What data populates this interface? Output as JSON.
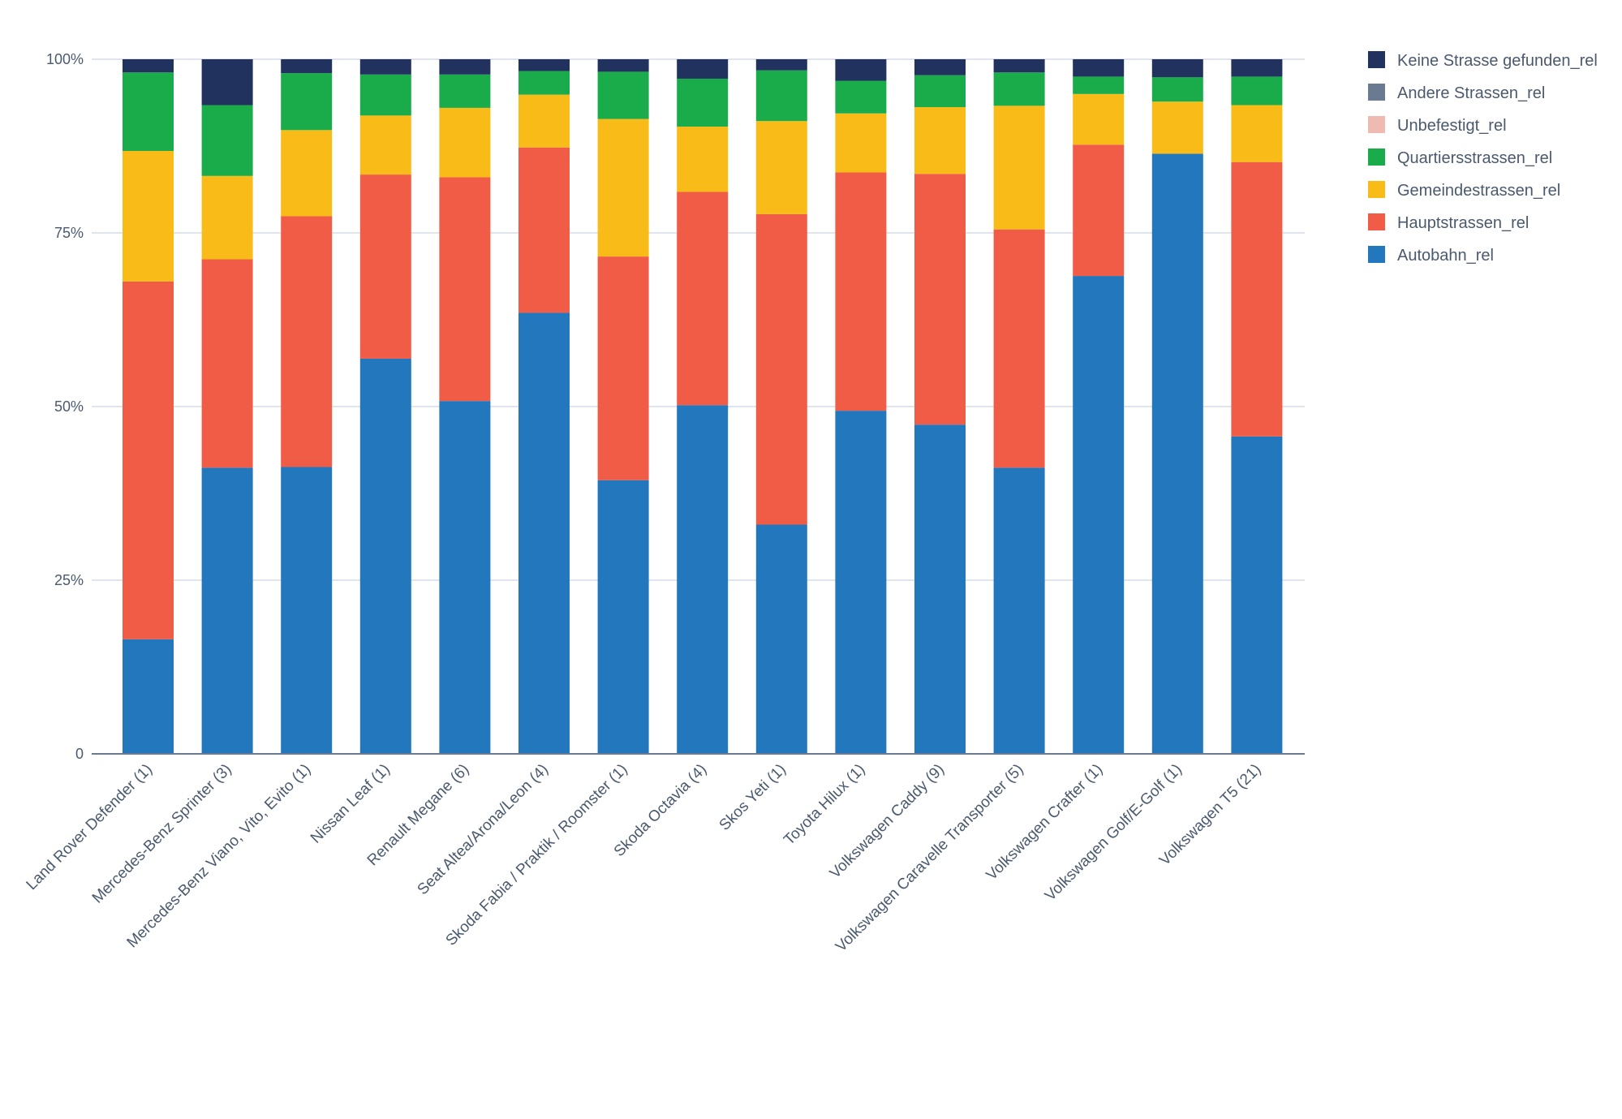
{
  "chart_data": {
    "type": "bar",
    "stacked": true,
    "normalized": true,
    "title": "",
    "xlabel": "",
    "ylabel": "",
    "ylim": [
      0,
      100
    ],
    "yticks": [
      "0",
      "25%",
      "50%",
      "75%",
      "100%"
    ],
    "grid": true,
    "legend_position": "right",
    "categories": [
      "Land Rover Defender (1)",
      "Mercedes-Benz Sprinter (3)",
      "Mercedes-Benz Viano, Vito, Evito (1)",
      "Nissan Leaf (1)",
      "Renault Megane (6)",
      "Seat Altea/Arona/Leon (4)",
      "Skoda Fabia / Praktik / Roomster (1)",
      "Skoda Octavia (4)",
      "Skos Yeti (1)",
      "Toyota Hilux (1)",
      "Volkswagen Caddy (9)",
      "Volkswagen Caravelle Transporter (5)",
      "Volkswagen Crafter (1)",
      "Volkswagen Golf/E-Golf (1)",
      "Volkswagen T5 (21)"
    ],
    "series": [
      {
        "name": "Autobahn_rel",
        "color": "#2377bc",
        "values": [
          16.5,
          41.2,
          41.3,
          56.9,
          50.8,
          63.5,
          39.4,
          50.2,
          33.0,
          49.4,
          47.4,
          41.2,
          68.8,
          86.4,
          45.7
        ]
      },
      {
        "name": "Hauptstrassen_rel",
        "color": "#f05c45",
        "values": [
          51.5,
          30.0,
          36.1,
          26.5,
          32.2,
          23.8,
          32.2,
          30.7,
          44.7,
          34.3,
          36.1,
          34.3,
          18.9,
          0,
          39.5
        ]
      },
      {
        "name": "Gemeindestrassen_rel",
        "color": "#f9bb17",
        "values": [
          18.8,
          12.0,
          12.4,
          8.5,
          10.0,
          7.6,
          19.8,
          9.4,
          13.4,
          8.5,
          9.6,
          17.8,
          7.3,
          7.5,
          8.2
        ]
      },
      {
        "name": "Quartiersstrassen_rel",
        "color": "#1aab4b",
        "values": [
          11.3,
          10.2,
          8.2,
          5.9,
          4.8,
          3.4,
          6.8,
          6.9,
          7.3,
          4.7,
          4.6,
          4.8,
          2.5,
          3.5,
          4.1
        ]
      },
      {
        "name": "Unbefestigt_rel",
        "color": "#eebab2",
        "values": [
          0,
          0,
          0,
          0,
          0,
          0,
          0,
          0,
          0,
          0,
          0,
          0,
          0,
          0,
          0
        ]
      },
      {
        "name": "Andere Strassen_rel",
        "color": "#697a91",
        "values": [
          0,
          0,
          0,
          0,
          0,
          0,
          0,
          0,
          0,
          0,
          0,
          0,
          0,
          0,
          0
        ]
      },
      {
        "name": "Keine Strasse gefunden_rel",
        "color": "#21325e",
        "values": [
          1.9,
          6.6,
          2.0,
          2.2,
          2.2,
          1.7,
          1.8,
          2.8,
          1.6,
          3.1,
          2.3,
          1.9,
          2.5,
          2.6,
          2.5
        ]
      }
    ]
  }
}
